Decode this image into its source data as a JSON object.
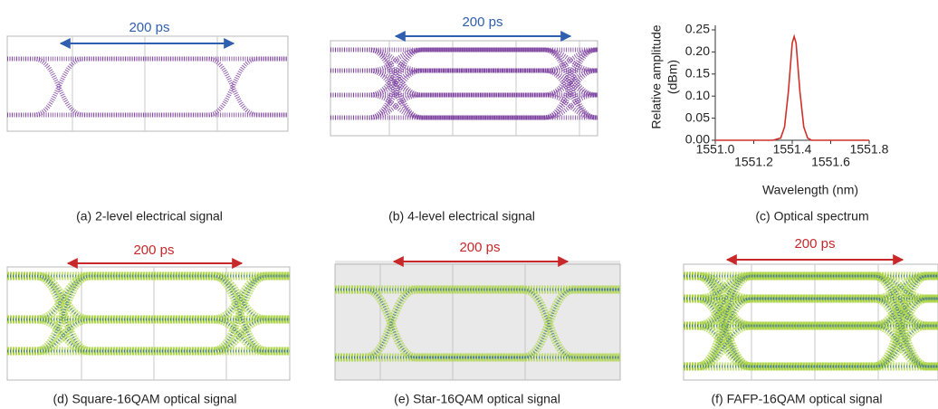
{
  "panels": [
    {
      "caption": "(a) 2-level electrical signal",
      "annotation": "200 ps"
    },
    {
      "caption": "(b) 4-level electrical signal",
      "annotation": "200 ps"
    },
    {
      "caption": "(c) Optical spectrum"
    },
    {
      "caption": "(d) Square-16QAM optical signal",
      "annotation": "200 ps"
    },
    {
      "caption": "(e) Star-16QAM optical signal",
      "annotation": "200 ps"
    },
    {
      "caption": "(f) FAFP-16QAM optical signal",
      "annotation": "200 ps"
    }
  ],
  "chart_data": {
    "type": "line",
    "xlabel": "Wavelength (nm)",
    "ylabel": [
      "Relative amplitude",
      "(dBm)"
    ],
    "color": "#d0302a",
    "x": [
      1551.0,
      1551.3,
      1551.34,
      1551.36,
      1551.38,
      1551.4,
      1551.41,
      1551.42,
      1551.44,
      1551.46,
      1551.48,
      1551.5,
      1551.8
    ],
    "values": [
      0,
      0,
      0.005,
      0.03,
      0.11,
      0.22,
      0.235,
      0.22,
      0.11,
      0.03,
      0.005,
      0,
      0
    ],
    "xlim": [
      1551.0,
      1551.8
    ],
    "xticks": [
      {
        "value": 1551,
        "label": "1551.0"
      },
      1551.2,
      1551.4,
      1551.6,
      1551.8
    ],
    "ylim": [
      0,
      0.25
    ],
    "yticks": [
      {
        "value": 0,
        "label": "0.00"
      },
      0.05,
      {
        "value": 0.1,
        "label": "0.10"
      },
      0.15,
      {
        "value": 0.2,
        "label": "0.20"
      },
      0.25
    ]
  }
}
